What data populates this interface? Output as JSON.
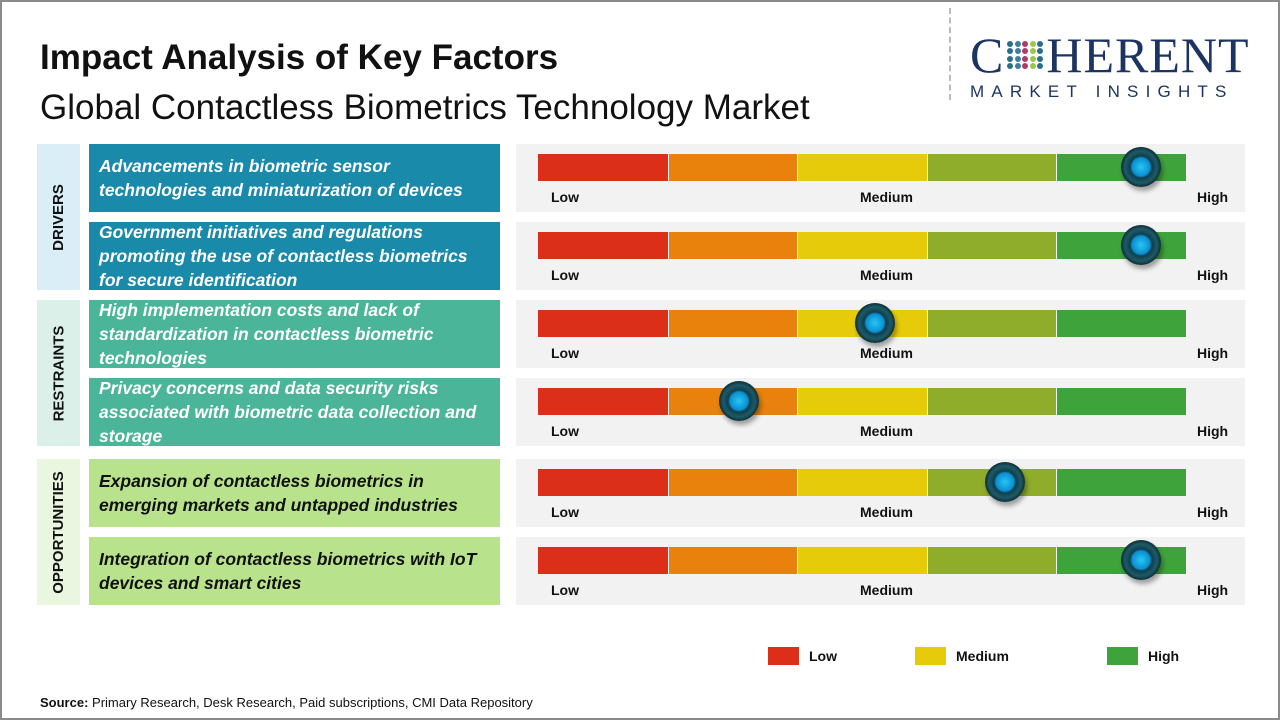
{
  "header": {
    "title": "Impact Analysis of Key Factors",
    "subtitle": "Global Contactless Biometrics Technology Market"
  },
  "logo": {
    "line1_pre": "C",
    "line1_post": "HERENT",
    "line2": "MARKET INSIGHTS"
  },
  "colors": {
    "low": "#dc2f1a",
    "low_medium": "#e8820c",
    "medium": "#e6cb0a",
    "medium_high": "#8fad2a",
    "high": "#3fa33c",
    "knob": "#1ab8ee"
  },
  "chart_data": {
    "type": "table",
    "scale_labels": {
      "low": "Low",
      "medium": "Medium",
      "high": "High"
    },
    "categories": [
      {
        "label": "DRIVERS",
        "color": "#d9eef6",
        "box_color": "#1a8aaa",
        "text_color": "#ffffff",
        "factors": [
          {
            "text": "Advancements in biometric sensor technologies and miniaturization of devices",
            "impact": 0.93
          },
          {
            "text": "Government initiatives and regulations promoting the use of contactless biometrics for secure identification",
            "impact": 0.93
          }
        ]
      },
      {
        "label": "RESTRAINTS",
        "color": "#dcf0ea",
        "box_color": "#4bb59a",
        "text_color": "#ffffff",
        "factors": [
          {
            "text": "High implementation costs and lack of standardization in contactless biometric technologies",
            "impact": 0.52
          },
          {
            "text": "Privacy concerns and data security risks associated with biometric data collection and storage",
            "impact": 0.31
          }
        ]
      },
      {
        "label": "OPPORTUNITIES",
        "color": "#eaf6df",
        "box_color": "#b9e28c",
        "text_color": "#111111",
        "factors": [
          {
            "text": "Expansion of contactless biometrics in emerging markets and untapped industries",
            "impact": 0.72
          },
          {
            "text": "Integration of contactless biometrics with IoT devices and smart cities",
            "impact": 0.93
          }
        ]
      }
    ],
    "legend": [
      {
        "label": "Low",
        "color": "#dc2f1a"
      },
      {
        "label": "Medium",
        "color": "#e6cb0a"
      },
      {
        "label": "High",
        "color": "#3fa33c"
      }
    ]
  },
  "footer": {
    "source_label": "Source:",
    "source_text": " Primary Research, Desk Research, Paid subscriptions, CMI Data Repository"
  }
}
